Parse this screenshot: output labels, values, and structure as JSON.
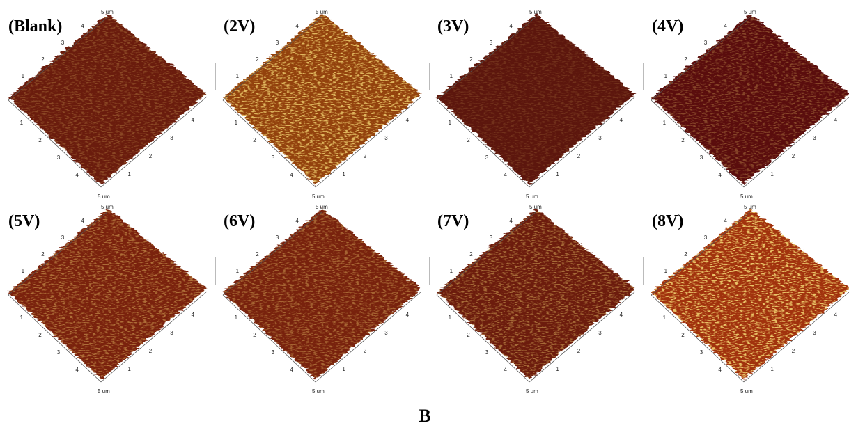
{
  "panels": [
    {
      "label": "(Blank)",
      "corner_label": "5 um",
      "ticks": [
        "1",
        "2",
        "3",
        "4"
      ]
    },
    {
      "label": "(2V)",
      "corner_label": "5 um",
      "ticks": [
        "1",
        "2",
        "3",
        "4"
      ]
    },
    {
      "label": "(3V)",
      "corner_label": "5 um",
      "ticks": [
        "1",
        "2",
        "3",
        "4"
      ]
    },
    {
      "label": "(4V)",
      "corner_label": "5 um",
      "ticks": [
        "1",
        "2",
        "3",
        "4"
      ]
    },
    {
      "label": "(5V)",
      "corner_label": "5 um",
      "ticks": [
        "1",
        "2",
        "3",
        "4"
      ]
    },
    {
      "label": "(6V)",
      "corner_label": "5 um",
      "ticks": [
        "1",
        "2",
        "3",
        "4"
      ]
    },
    {
      "label": "(7V)",
      "corner_label": "5 um",
      "ticks": [
        "1",
        "2",
        "3",
        "4"
      ]
    },
    {
      "label": "(8V)",
      "corner_label": "5 um",
      "ticks": [
        "1",
        "2",
        "3",
        "4"
      ]
    }
  ],
  "caption": "B"
}
